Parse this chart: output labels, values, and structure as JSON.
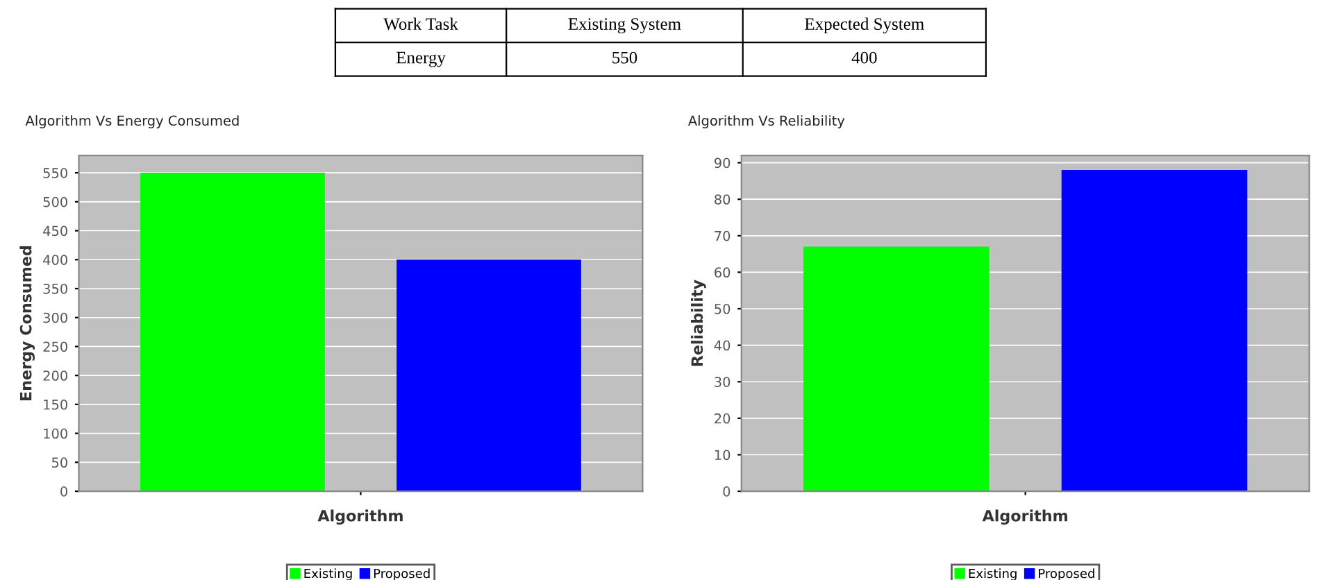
{
  "chart_data": [
    {
      "type": "bar",
      "title": "Algorithm Vs Energy Consumed",
      "xlabel": "Algorithm",
      "ylabel": "Energy Consumed",
      "categories": [
        null
      ],
      "series": [
        {
          "name": "Existing",
          "color": "#00ff00",
          "values": [
            550
          ]
        },
        {
          "name": "Proposed",
          "color": "#0000ff",
          "values": [
            400
          ]
        }
      ],
      "ylim": [
        0,
        580
      ],
      "yticks": [
        0,
        50,
        100,
        150,
        200,
        250,
        300,
        350,
        400,
        450,
        500,
        550
      ],
      "grid": "y",
      "legend": "bottom",
      "annotations": [
        "Work Task",
        "Existing System",
        "Expected System",
        "Energy",
        "550",
        "400"
      ]
    },
    {
      "type": "bar",
      "title": "Algorithm Vs Reliability",
      "xlabel": "Algorithm",
      "ylabel": "Reliability",
      "categories": [
        null
      ],
      "series": [
        {
          "name": "Existing",
          "color": "#00ff00",
          "values": [
            67
          ]
        },
        {
          "name": "Proposed",
          "color": "#0000ff",
          "values": [
            88
          ]
        }
      ],
      "ylim": [
        0,
        92
      ],
      "yticks": [
        0,
        10,
        20,
        30,
        40,
        50,
        60,
        70,
        80,
        90
      ],
      "grid": "y",
      "legend": "bottom"
    }
  ]
}
